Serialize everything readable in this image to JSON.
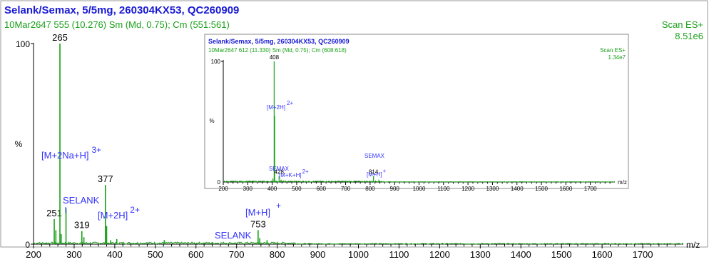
{
  "colors": {
    "trace": "#1aa01a",
    "title": "#1a1ad6",
    "annotation": "#3333ff",
    "axis": "#000000",
    "frame": "#888888"
  },
  "main": {
    "title": "Selank/Semax, 5/5mg, 260304KX53, QC260909",
    "subtitle": "10Mar2647  555 (10.276) Sm (Md, 0.75); Cm (551:561)",
    "scan": "Scan ES+",
    "intensity": "8.51e6",
    "y_top_label": "100",
    "y_zero_label": "0",
    "y_axis_label": "%",
    "x_unit": "m/z",
    "annotations": {
      "m2nah": "[M+2Na+H]",
      "m2nah_charge": "3+",
      "selank_a": "SELANK",
      "m2h": "[M+2H]",
      "m2h_charge": "2+",
      "mh": "[M+H]",
      "mh_charge": "+",
      "selank_b": "SELANK"
    }
  },
  "inset": {
    "title": "Selank/Semax, 5/5mg, 260304KX53, QC260909",
    "subtitle": "10Mar2647  612 (11.330) Sm (Md, 0.75); Cm (608:618)",
    "scan": "Scan ES+",
    "intensity": "1.34e7",
    "y_top_label": "100",
    "y_zero_label": "0",
    "y_axis_label": "%",
    "x_unit": "m/z",
    "annotations": {
      "m2h": "[M+2H]",
      "m2h_charge": "2+",
      "semax_a": "SEMAX",
      "mkh": "[M+K+H]",
      "mkh_charge": "2+",
      "semax_b": "SEMAX",
      "mh": "[M+H]",
      "mh_charge": "+"
    }
  },
  "chart_data": [
    {
      "type": "bar",
      "title": "Selank/Semax, 5/5mg, 260304KX53, QC260909",
      "xlabel": "m/z",
      "ylabel": "%",
      "xlim": [
        200,
        1800
      ],
      "ylim": [
        0,
        100
      ],
      "xticks": [
        200,
        300,
        400,
        500,
        600,
        700,
        800,
        900,
        1000,
        1100,
        1200,
        1300,
        1400,
        1500,
        1600,
        1700
      ],
      "peaks": [
        {
          "x": 251,
          "y": 12.5,
          "label": "251"
        },
        {
          "x": 255,
          "y": 7
        },
        {
          "x": 265,
          "y": 100,
          "label": "265"
        },
        {
          "x": 268,
          "y": 5
        },
        {
          "x": 280,
          "y": 18
        },
        {
          "x": 319,
          "y": 6.5,
          "label": "319"
        },
        {
          "x": 324,
          "y": 3.5
        },
        {
          "x": 377,
          "y": 29.5,
          "label": "377"
        },
        {
          "x": 380,
          "y": 9
        },
        {
          "x": 390,
          "y": 2
        },
        {
          "x": 405,
          "y": 2.5
        },
        {
          "x": 522,
          "y": 2
        },
        {
          "x": 640,
          "y": 0.8
        },
        {
          "x": 753,
          "y": 7,
          "label": "753"
        },
        {
          "x": 757,
          "y": 3
        },
        {
          "x": 775,
          "y": 2
        }
      ]
    },
    {
      "type": "bar",
      "title": "Selank/Semax, 5/5mg, 260304KX53, QC260909",
      "xlabel": "m/z",
      "ylabel": "%",
      "xlim": [
        200,
        1800
      ],
      "ylim": [
        0,
        100
      ],
      "xticks": [
        200,
        300,
        400,
        500,
        600,
        700,
        800,
        900,
        1000,
        1100,
        1200,
        1300,
        1400,
        1500,
        1600,
        1700
      ],
      "peaks": [
        {
          "x": 403,
          "y": 3
        },
        {
          "x": 408,
          "y": 100,
          "label": "408"
        },
        {
          "x": 410,
          "y": 55
        },
        {
          "x": 428,
          "y": 5,
          "label": "428"
        },
        {
          "x": 436,
          "y": 2
        },
        {
          "x": 814,
          "y": 5,
          "label": "814"
        },
        {
          "x": 836,
          "y": 2
        }
      ]
    }
  ]
}
